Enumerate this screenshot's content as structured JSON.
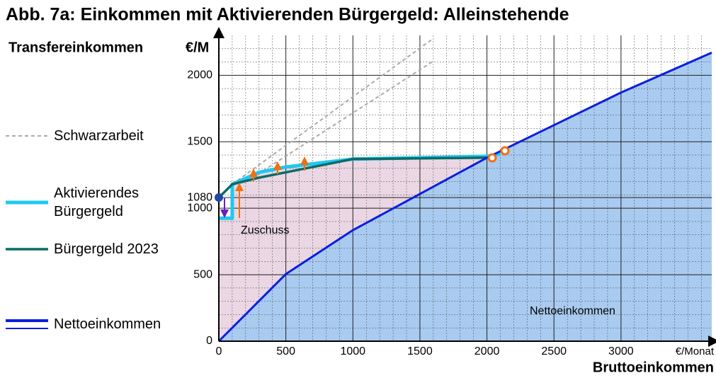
{
  "chart_data": {
    "type": "line",
    "title": "Abb. 7a:  Einkommen mit Aktivierenden Bürgergeld:   Alleinstehende",
    "y_label": "Transfereinkommen",
    "y_unit": "€/M",
    "x_unit": "€/Monat",
    "x_label": "Bruttoeinkommen",
    "annotations": [
      "Zuschuss",
      "Nettoeinkommen"
    ],
    "xlim": [
      0,
      3677
    ],
    "ylim": [
      0,
      2300
    ],
    "xticks": [
      0,
      500,
      1000,
      1500,
      2000,
      2500,
      3000
    ],
    "yticks": [
      0,
      500,
      1000,
      1080,
      1500,
      2000
    ],
    "grid": true,
    "minor_grid_step": 100,
    "series": [
      {
        "name": "Schwarzarbeit",
        "color": "#aaaaaa",
        "dash": true,
        "x": [
          100,
          1590
        ],
        "values": [
          1180,
          2270
        ]
      },
      {
        "color": "#aaaaaa",
        "dash": true,
        "x": [
          250,
          1590
        ],
        "values": [
          1230,
          2100
        ]
      },
      {
        "name": "Aktivierendes Bürgergeld",
        "color": "#1fc8f0",
        "fill": "#ead7e3",
        "x": [
          0,
          100,
          100,
          300,
          500,
          1000,
          2000,
          2100
        ],
        "values": [
          925,
          925,
          1180,
          1270,
          1310,
          1370,
          1390,
          1410
        ]
      },
      {
        "name": "Bürgergeld 2023",
        "color": "#0d6b66",
        "x": [
          0,
          100,
          300,
          500,
          1000,
          2000
        ],
        "values": [
          1080,
          1180,
          1230,
          1270,
          1370,
          1380
        ]
      },
      {
        "name": "Nettoeinkommen",
        "color": "#0a1ee0",
        "fill": "#a9cbf0",
        "x": [
          0,
          500,
          1000,
          2000,
          3000,
          3677
        ],
        "values": [
          0,
          505,
          835,
          1380,
          1870,
          2170
        ]
      }
    ]
  }
}
